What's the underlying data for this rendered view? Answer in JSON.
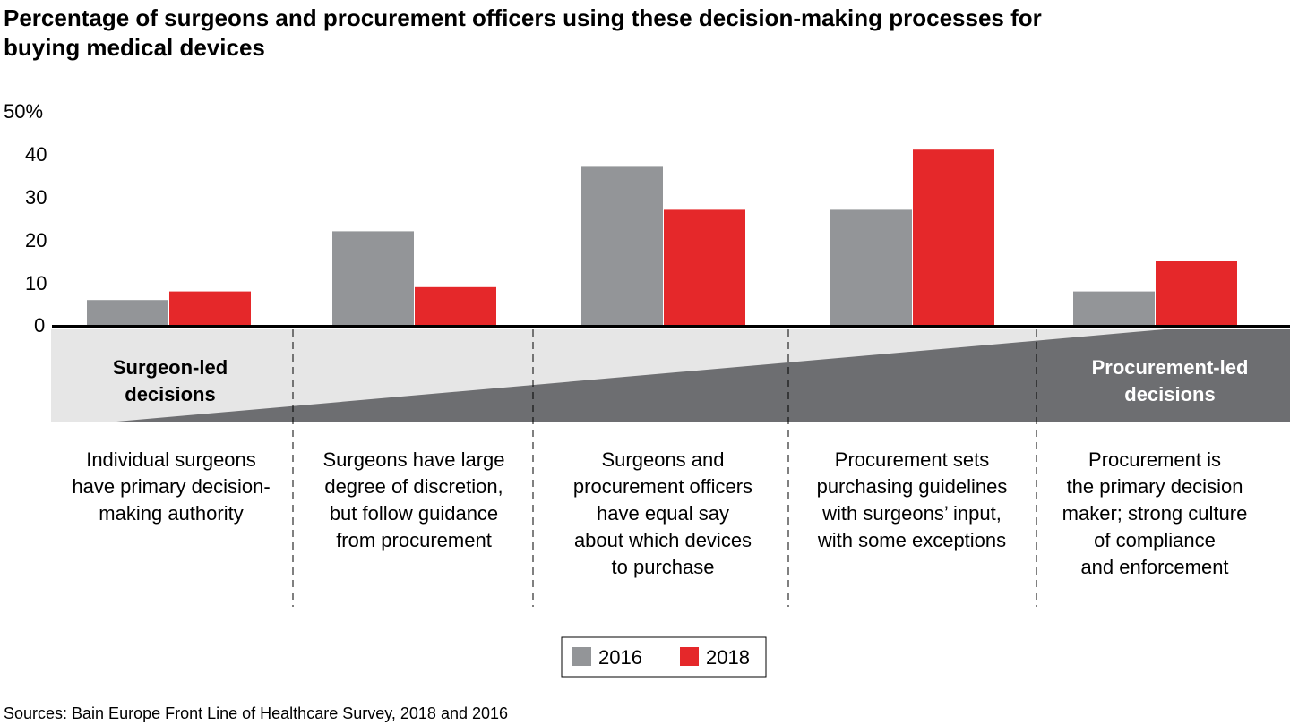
{
  "chart_data": {
    "type": "bar",
    "title_lines": [
      "Percentage of surgeons and procurement officers using these decision-making processes for",
      "buying medical devices"
    ],
    "ylim": [
      0,
      50
    ],
    "yticks": [
      "0",
      "10",
      "20",
      "30",
      "40",
      "50%"
    ],
    "ytick_values": [
      0,
      10,
      20,
      30,
      40,
      50
    ],
    "grid": false,
    "categories": [
      [
        "Individual surgeons",
        "have primary decision-",
        "making authority"
      ],
      [
        "Surgeons have large",
        "degree of discretion,",
        "but follow guidance",
        "from procurement"
      ],
      [
        "Surgeons and",
        "procurement officers",
        "have equal say",
        "about which devices",
        "to purchase"
      ],
      [
        "Procurement sets",
        "purchasing guidelines",
        "with surgeons’ input,",
        "with some exceptions"
      ],
      [
        "Procurement is",
        "the primary decision",
        "maker; strong culture",
        "of compliance",
        "and enforcement"
      ]
    ],
    "series": [
      {
        "name": "2016",
        "color": "#939598",
        "values": [
          6,
          22,
          37,
          27,
          8
        ]
      },
      {
        "name": "2018",
        "color": "#e5282a",
        "values": [
          8,
          9,
          27,
          41,
          15
        ]
      }
    ],
    "band": {
      "left_label": [
        "Surgeon-led",
        "decisions"
      ],
      "right_label": [
        "Procurement-led",
        "decisions"
      ],
      "light_color": "#e6e6e6",
      "dark_color": "#6d6e71"
    },
    "legend_placement": "bottom-center",
    "source": "Sources: Bain Europe Front Line of Healthcare Survey, 2018 and 2016"
  }
}
